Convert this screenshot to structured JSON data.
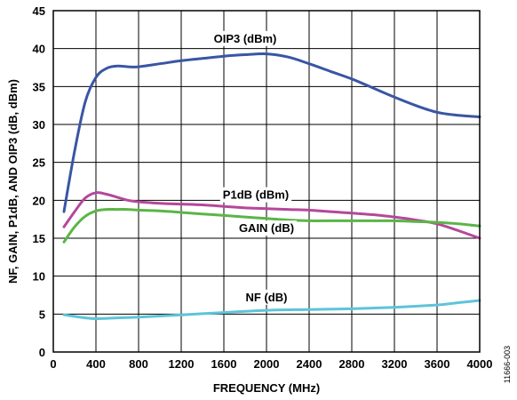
{
  "chart_data": {
    "type": "line",
    "xlabel": "FREQUENCY (MHz)",
    "ylabel": "NF, GAIN, P1dB, AND OIP3 (dB, dBm)",
    "xlim": [
      0,
      4000
    ],
    "ylim": [
      0,
      45
    ],
    "x_ticks": [
      "0",
      "400",
      "800",
      "1200",
      "1600",
      "2000",
      "2400",
      "2800",
      "3200",
      "3600",
      "4000"
    ],
    "y_ticks": [
      "0",
      "5",
      "10",
      "15",
      "20",
      "25",
      "30",
      "35",
      "40",
      "45"
    ],
    "grid": true,
    "figure_id": "11666-003",
    "series": [
      {
        "name": "OIP3 (dBm)",
        "color": "#3a55a4",
        "label_at": [
          1800,
          40.8
        ],
        "x": [
          100,
          200,
          300,
          400,
          500,
          600,
          700,
          800,
          1000,
          1200,
          1400,
          1600,
          1800,
          2000,
          2200,
          2400,
          2600,
          2800,
          3000,
          3200,
          3400,
          3600,
          3800,
          4000
        ],
        "y": [
          18.5,
          26.5,
          33.0,
          36.2,
          37.4,
          37.7,
          37.6,
          37.6,
          38.0,
          38.4,
          38.7,
          39.0,
          39.2,
          39.3,
          38.9,
          38.0,
          37.0,
          36.0,
          34.8,
          33.6,
          32.5,
          31.6,
          31.2,
          31.0
        ]
      },
      {
        "name": "P1dB (dBm)",
        "color": "#b5479b",
        "label_at": [
          1900,
          20.2
        ],
        "x": [
          100,
          200,
          300,
          400,
          500,
          600,
          700,
          800,
          1000,
          1200,
          1400,
          1600,
          1800,
          2000,
          2200,
          2400,
          2600,
          2800,
          3000,
          3200,
          3400,
          3600,
          3800,
          4000
        ],
        "y": [
          16.5,
          18.5,
          20.3,
          21.0,
          20.8,
          20.4,
          20.0,
          19.8,
          19.6,
          19.5,
          19.4,
          19.2,
          19.0,
          18.9,
          18.8,
          18.7,
          18.5,
          18.3,
          18.1,
          17.8,
          17.4,
          16.9,
          16.0,
          15.0
        ]
      },
      {
        "name": "GAIN (dB)",
        "color": "#5bb547",
        "label_at": [
          2000,
          15.8
        ],
        "x": [
          100,
          200,
          300,
          400,
          500,
          600,
          700,
          800,
          1000,
          1200,
          1400,
          1600,
          1800,
          2000,
          2200,
          2400,
          2600,
          2800,
          3000,
          3200,
          3400,
          3600,
          3800,
          4000
        ],
        "y": [
          14.5,
          16.5,
          17.9,
          18.6,
          18.8,
          18.8,
          18.8,
          18.7,
          18.6,
          18.4,
          18.2,
          18.0,
          17.8,
          17.6,
          17.4,
          17.3,
          17.3,
          17.3,
          17.3,
          17.3,
          17.2,
          17.1,
          16.9,
          16.6
        ]
      },
      {
        "name": "NF (dB)",
        "color": "#5ec4d9",
        "label_at": [
          2000,
          6.7
        ],
        "x": [
          100,
          200,
          300,
          400,
          600,
          800,
          1200,
          1600,
          2000,
          2400,
          2800,
          3200,
          3600,
          3800,
          4000
        ],
        "y": [
          4.9,
          4.7,
          4.5,
          4.4,
          4.5,
          4.6,
          4.9,
          5.2,
          5.5,
          5.6,
          5.7,
          5.9,
          6.2,
          6.5,
          6.8
        ]
      }
    ]
  }
}
